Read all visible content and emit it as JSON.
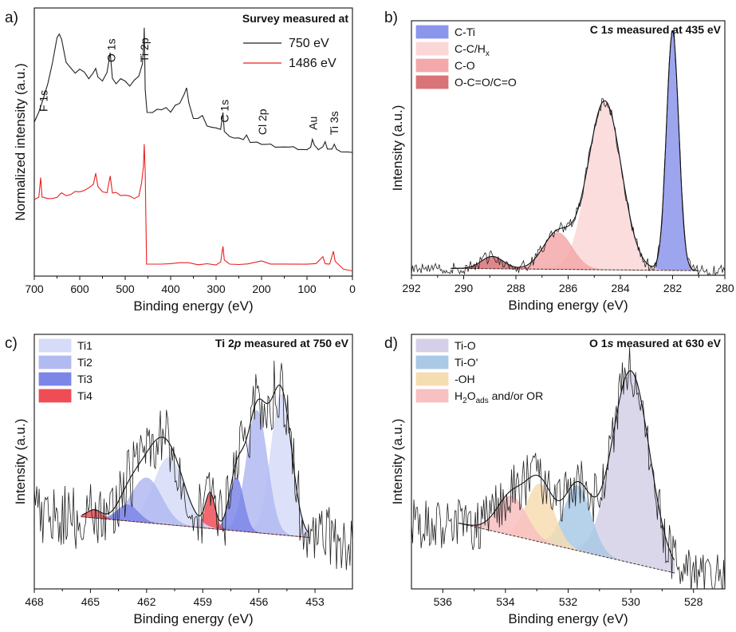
{
  "chart_data": [
    {
      "panel": "a)",
      "type": "line",
      "xlabel": "Binding energy (eV)",
      "ylabel": "Normalized intensity (a.u.)",
      "xlim": [
        700,
        0
      ],
      "xticks": [
        700,
        600,
        500,
        400,
        300,
        200,
        100,
        0
      ],
      "title": "Survey measured at",
      "legend_position": "top-right",
      "series": [
        {
          "name": "750 eV",
          "color": "#222222",
          "points": [
            [
              700,
              0.62
            ],
            [
              690,
              0.66
            ],
            [
              680,
              0.72
            ],
            [
              670,
              0.78
            ],
            [
              660,
              0.86
            ],
            [
              650,
              0.96
            ],
            [
              645,
              0.98
            ],
            [
              640,
              0.95
            ],
            [
              630,
              0.86
            ],
            [
              620,
              0.84
            ],
            [
              610,
              0.82
            ],
            [
              600,
              0.83
            ],
            [
              590,
              0.82
            ],
            [
              580,
              0.8
            ],
            [
              570,
              0.82
            ],
            [
              565,
              0.84
            ],
            [
              560,
              0.8
            ],
            [
              550,
              0.79
            ],
            [
              540,
              0.82
            ],
            [
              533,
              0.9
            ],
            [
              528,
              0.8
            ],
            [
              520,
              0.78
            ],
            [
              510,
              0.79
            ],
            [
              500,
              0.78
            ],
            [
              490,
              0.77
            ],
            [
              480,
              0.79
            ],
            [
              470,
              0.8
            ],
            [
              462,
              0.86
            ],
            [
              459,
              0.94
            ],
            [
              458,
              1.0
            ],
            [
              456,
              0.75
            ],
            [
              452,
              0.66
            ],
            [
              440,
              0.66
            ],
            [
              430,
              0.67
            ],
            [
              420,
              0.67
            ],
            [
              410,
              0.68
            ],
            [
              400,
              0.66
            ],
            [
              390,
              0.69
            ],
            [
              380,
              0.7
            ],
            [
              370,
              0.73
            ],
            [
              365,
              0.76
            ],
            [
              360,
              0.7
            ],
            [
              350,
              0.64
            ],
            [
              340,
              0.63
            ],
            [
              330,
              0.65
            ],
            [
              320,
              0.6
            ],
            [
              310,
              0.6
            ],
            [
              300,
              0.6
            ],
            [
              290,
              0.59
            ],
            [
              285,
              0.66
            ],
            [
              282,
              0.58
            ],
            [
              270,
              0.56
            ],
            [
              260,
              0.56
            ],
            [
              250,
              0.56
            ],
            [
              240,
              0.55
            ],
            [
              233,
              0.57
            ],
            [
              225,
              0.54
            ],
            [
              210,
              0.54
            ],
            [
              200,
              0.53
            ],
            [
              190,
              0.53
            ],
            [
              180,
              0.53
            ],
            [
              170,
              0.52
            ],
            [
              160,
              0.52
            ],
            [
              150,
              0.52
            ],
            [
              140,
              0.52
            ],
            [
              130,
              0.52
            ],
            [
              120,
              0.51
            ],
            [
              110,
              0.51
            ],
            [
              100,
              0.51
            ],
            [
              92,
              0.52
            ],
            [
              88,
              0.55
            ],
            [
              84,
              0.53
            ],
            [
              75,
              0.51
            ],
            [
              65,
              0.52
            ],
            [
              60,
              0.54
            ],
            [
              55,
              0.51
            ],
            [
              45,
              0.51
            ],
            [
              40,
              0.53
            ],
            [
              35,
              0.51
            ],
            [
              25,
              0.5
            ],
            [
              10,
              0.5
            ],
            [
              0,
              0.5
            ]
          ]
        },
        {
          "name": "1486 eV",
          "color": "#e8211f",
          "points": [
            [
              700,
              0.31
            ],
            [
              690,
              0.32
            ],
            [
              686,
              0.4
            ],
            [
              683,
              0.32
            ],
            [
              670,
              0.31
            ],
            [
              660,
              0.31
            ],
            [
              650,
              0.32
            ],
            [
              640,
              0.33
            ],
            [
              630,
              0.33
            ],
            [
              620,
              0.33
            ],
            [
              610,
              0.34
            ],
            [
              600,
              0.34
            ],
            [
              590,
              0.35
            ],
            [
              580,
              0.35
            ],
            [
              570,
              0.37
            ],
            [
              565,
              0.41
            ],
            [
              560,
              0.36
            ],
            [
              550,
              0.34
            ],
            [
              540,
              0.34
            ],
            [
              533,
              0.4
            ],
            [
              528,
              0.33
            ],
            [
              520,
              0.34
            ],
            [
              510,
              0.33
            ],
            [
              500,
              0.33
            ],
            [
              490,
              0.32
            ],
            [
              480,
              0.31
            ],
            [
              470,
              0.32
            ],
            [
              464,
              0.37
            ],
            [
              460,
              0.44
            ],
            [
              458,
              0.53
            ],
            [
              456,
              0.42
            ],
            [
              453,
              0.05
            ],
            [
              440,
              0.05
            ],
            [
              420,
              0.05
            ],
            [
              400,
              0.05
            ],
            [
              380,
              0.05
            ],
            [
              360,
              0.05
            ],
            [
              340,
              0.05
            ],
            [
              320,
              0.05
            ],
            [
              300,
              0.05
            ],
            [
              290,
              0.06
            ],
            [
              285,
              0.12
            ],
            [
              282,
              0.07
            ],
            [
              270,
              0.05
            ],
            [
              250,
              0.05
            ],
            [
              230,
              0.05
            ],
            [
              200,
              0.06
            ],
            [
              180,
              0.05
            ],
            [
              150,
              0.05
            ],
            [
              100,
              0.05
            ],
            [
              80,
              0.05
            ],
            [
              65,
              0.08
            ],
            [
              60,
              0.05
            ],
            [
              50,
              0.05
            ],
            [
              42,
              0.1
            ],
            [
              38,
              0.06
            ],
            [
              20,
              0.03
            ],
            [
              0,
              0.02
            ]
          ]
        }
      ],
      "annotations": [
        {
          "text": "F 1s",
          "x": 680,
          "rotate": -90
        },
        {
          "text": "O 1s",
          "x": 531,
          "rotate": -90
        },
        {
          "text": "Ti 2p",
          "x": 458,
          "rotate": -90
        },
        {
          "text": "C 1s",
          "x": 282,
          "rotate": -90
        },
        {
          "text": "Cl 2p",
          "x": 198,
          "rotate": -90
        },
        {
          "text": "Au",
          "x": 87,
          "rotate": -90
        },
        {
          "text": "Ti 3s",
          "x": 40,
          "rotate": -90
        }
      ]
    },
    {
      "panel": "b)",
      "type": "area",
      "title_plain": "C 1",
      "title_italic": "s",
      "title_rest": " measured at 435 eV",
      "xlabel": "Binding energy (eV)",
      "ylabel": "Intensity (a.u.)",
      "xlim": [
        292,
        280
      ],
      "xticks": [
        292,
        290,
        288,
        286,
        284,
        282,
        280
      ],
      "legend_position": "top-left",
      "components": [
        {
          "name": "C-Ti",
          "color": "#8c95ec",
          "center": 282.0,
          "fwhm": 0.55,
          "height": 0.98
        },
        {
          "name": "C-C/H",
          "sub": "x",
          "color": "#fcd7d7",
          "center": 284.6,
          "fwhm": 1.5,
          "height": 0.69
        },
        {
          "name": "C-O",
          "color": "#f4a8a9",
          "center": 286.4,
          "fwhm": 1.3,
          "height": 0.15
        },
        {
          "name": "O-C=O/C=O",
          "color": "#d97377",
          "center": 288.9,
          "fwhm": 1.0,
          "height": 0.05
        }
      ]
    },
    {
      "panel": "c)",
      "type": "area",
      "title_plain": "Ti 2",
      "title_italic": "p",
      "title_rest": " measured at 750 eV",
      "xlabel": "Binding energy (eV)",
      "ylabel": "Intensity (a.u.)",
      "xlim": [
        468,
        451
      ],
      "xticks": [
        468,
        465,
        462,
        459,
        456,
        453
      ],
      "legend_position": "top-left",
      "components": [
        {
          "name": "Ti1",
          "color": "#d6dcf8",
          "center": 454.8,
          "fwhm": 1.3,
          "height": 0.69
        },
        {
          "name": "Ti2",
          "color": "#b2baf2",
          "center": 456.1,
          "fwhm": 1.3,
          "height": 0.6
        },
        {
          "name": "Ti3",
          "color": "#7c86e8",
          "center": 457.2,
          "fwhm": 0.9,
          "height": 0.26
        },
        {
          "name": "Ti4",
          "color": "#ef4d55",
          "center": 458.6,
          "fwhm": 0.6,
          "height": 0.17
        },
        {
          "name": "Ti1",
          "color": "#d6dcf8",
          "center": 460.8,
          "fwhm": 1.9,
          "height": 0.33,
          "legend": false
        },
        {
          "name": "Ti2",
          "color": "#b2baf2",
          "center": 462.0,
          "fwhm": 1.9,
          "height": 0.22,
          "legend": false
        },
        {
          "name": "Ti3",
          "color": "#7c86e8",
          "center": 463.0,
          "fwhm": 1.3,
          "height": 0.08,
          "legend": false
        },
        {
          "name": "Ti4",
          "color": "#ef4d55",
          "center": 464.8,
          "fwhm": 0.9,
          "height": 0.04,
          "legend": false
        }
      ]
    },
    {
      "panel": "d)",
      "type": "area",
      "title_plain": "O 1",
      "title_italic": "s",
      "title_rest": " measured at 630 eV",
      "xlabel": "Binding energy (eV)",
      "ylabel": "Intensity (a.u.)",
      "xlim": [
        537,
        527
      ],
      "xticks": [
        536,
        534,
        532,
        530,
        528
      ],
      "legend_position": "top-left",
      "components": [
        {
          "name": "Ti-O",
          "color": "#d5d0e8",
          "center": 530.0,
          "fwhm": 1.4,
          "height": 0.83
        },
        {
          "name": "Ti-O'",
          "color": "#a9c9e6",
          "center": 531.7,
          "fwhm": 1.0,
          "height": 0.28
        },
        {
          "name": "-OH",
          "color": "#f6ddb1",
          "center": 532.9,
          "fwhm": 1.0,
          "height": 0.25
        },
        {
          "name": "H",
          "sub": "2",
          "name2": "O",
          "sub2": "ads",
          "rest": " and/or OR",
          "color": "#f8c0c1",
          "center": 533.8,
          "fwhm": 1.1,
          "height": 0.17
        }
      ]
    }
  ]
}
